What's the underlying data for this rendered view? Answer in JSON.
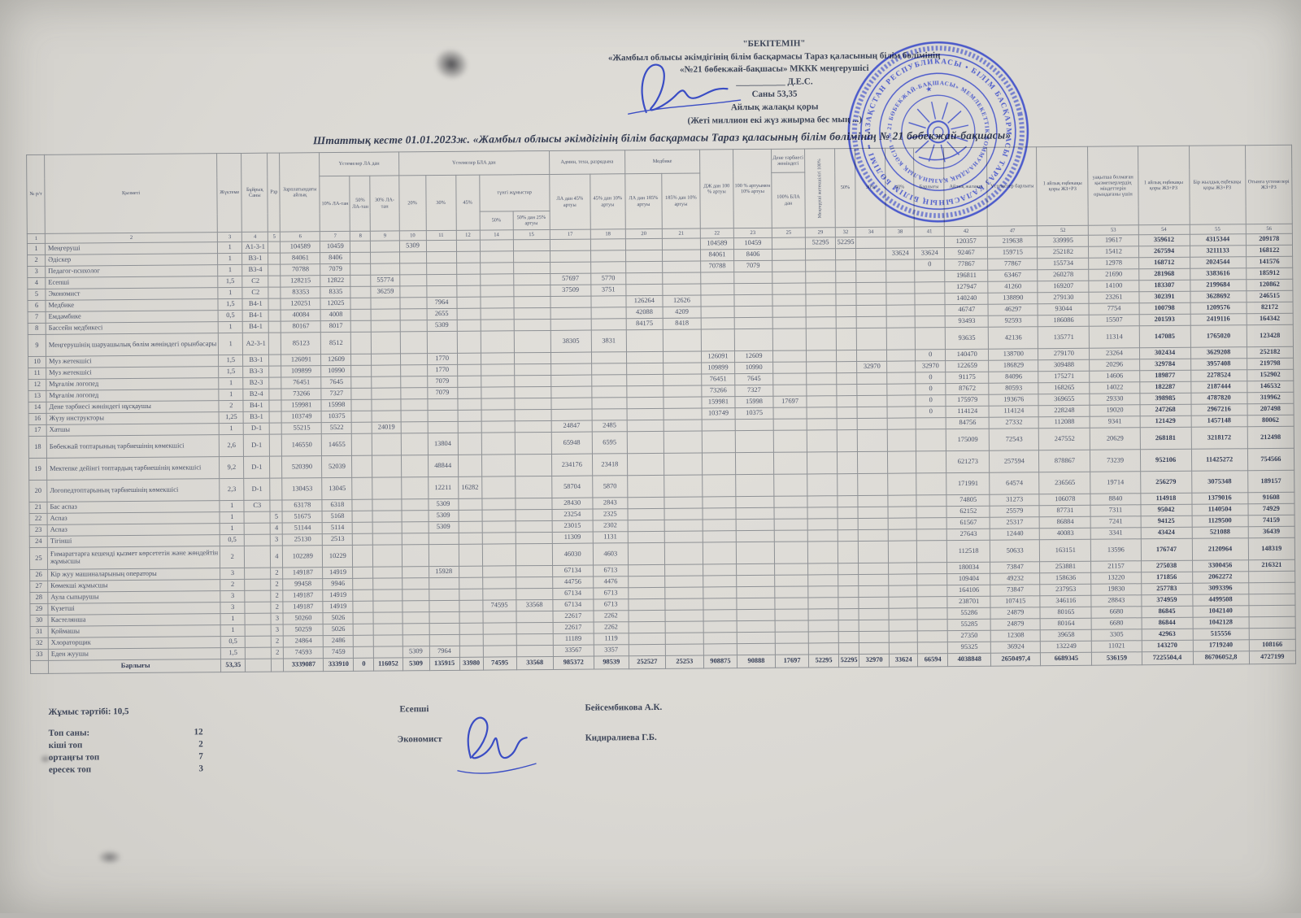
{
  "approval": {
    "l1": "\"БЕКІТЕМІН\"",
    "l2": "«Жамбыл облысы әкімдігінің білім басқармасы Тараз қаласының білім бөлімінің",
    "l3": "«№21 бөбекжай-бақшасы» МККК меңгерушісі",
    "l4": "___________ Д.Е.С.",
    "l5": "Саны 53,35",
    "l6": "Айлық жалақы қоры",
    "l7": "(Жеті миллион екі жүз жиырма бес мың ...)"
  },
  "title": "Штаттық кесте  01.01.2023ж.  «Жамбыл облысы әкімдігінің білім басқармасы Тараз қаласының білім бөлімінің № 21 бөбекжай-бақшасы»",
  "table": {
    "columns": [
      "1",
      "2",
      "3",
      "4",
      "5",
      "6",
      "7",
      "8",
      "9",
      "10",
      "11",
      "12",
      "14",
      "15",
      "17",
      "18",
      "20",
      "21",
      "22",
      "23",
      "25",
      "29",
      "32",
      "34",
      "38",
      "41",
      "42",
      "47",
      "52",
      "53",
      "54",
      "55",
      "56"
    ],
    "h": {
      "c1": "№ р/т",
      "c2": "Қызметі",
      "c3": "Жүктеме",
      "c4": "Бұйрық Саны",
      "c5": "Рзр",
      "c6": "Зарплатындағы айлық",
      "g_la": "Үстемелер ЛА дан",
      "g_bla": "Үстемелер БЛА дан",
      "g_adm": "Админ, техн, разрядына",
      "g_med": "Медбике",
      "g_dene": "Дене тәрбиесі жөніндегі",
      "g_tun": "түнгі жұмыстар",
      "c7": "10% ЛА-тан",
      "c8": "50% ЛА-тан",
      "c9": "30% ЛА-тан",
      "c10": "20%",
      "c11": "30%",
      "c12": "45%",
      "c14": "50%",
      "c15": "50% дан 25% артуы",
      "c17": "ЛА дан 45% артуы",
      "c18": "45% дан 10% артуы",
      "c20": "ЛА дан 185% артуы",
      "c21": "185% дан 10% артуы",
      "c22": "ДЖ дан 100 % артуы",
      "c23": "100 % артуымен 10% артуы",
      "c25": "100% БЛА дан",
      "c29": "Меңгеруші жетекшілігі 100%",
      "c32": "50%",
      "c34": "30%",
      "c38": "40%",
      "c41": "Барлығы",
      "c42": "Айлық жалақы",
      "c47": "Үстемелер барлығы",
      "c52": "1 айлық еңбекақы қоры ЖЗ+РЗ",
      "c53": "уақытша болмаған қызметкерлердің міндеттерін орындағаны үшін",
      "c54": "1 айлық еңбекақы қоры ЖЗ+РЗ",
      "c55": "Бір жылдық еңбекақы қоры ЖЗ+РЗ",
      "c56": "Отынға үстемелері ЖЗ+РЗ"
    },
    "rows": [
      {
        "cells": {
          "1": "1",
          "2": "Меңгеруші",
          "3": "1",
          "4": "A1-3-1",
          "6": "104589",
          "7": "10459",
          "10": "5309",
          "22": "104589",
          "23": "10459",
          "29": "52295",
          "32": "52295",
          "42": "120357",
          "47": "219638",
          "52": "339995",
          "53": "19617",
          "54": "359612",
          "55": "4315344",
          "56": "209178"
        }
      },
      {
        "cells": {
          "1": "2",
          "2": "Әдіскер",
          "3": "1",
          "4": "B3-1",
          "6": "84061",
          "7": "8406",
          "22": "84061",
          "23": "8406",
          "38": "33624",
          "41": "33624",
          "42": "92467",
          "47": "159715",
          "52": "252182",
          "53": "15412",
          "54": "267594",
          "55": "3211133",
          "56": "168122"
        }
      },
      {
        "cells": {
          "1": "3",
          "2": "Педагог-психолог",
          "3": "1",
          "4": "B3-4",
          "6": "70788",
          "7": "7079",
          "22": "70788",
          "23": "7079",
          "41": "0",
          "42": "77867",
          "47": "77867",
          "52": "155734",
          "53": "12978",
          "54": "168712",
          "55": "2024544",
          "56": "141576"
        }
      },
      {
        "cells": {
          "1": "4",
          "2": "Есепші",
          "3": "1,5",
          "4": "C2",
          "6": "128215",
          "7": "12822",
          "9": "55774",
          "17": "57697",
          "18": "5770",
          "42": "196811",
          "47": "63467",
          "52": "260278",
          "53": "21690",
          "54": "281968",
          "55": "3383616",
          "56": "185912"
        }
      },
      {
        "cells": {
          "1": "5",
          "2": "Экономист",
          "3": "1",
          "4": "C2",
          "6": "83353",
          "7": "8335",
          "9": "36259",
          "17": "37509",
          "18": "3751",
          "42": "127947",
          "47": "41260",
          "52": "169207",
          "53": "14100",
          "54": "183307",
          "55": "2199684",
          "56": "120862"
        }
      },
      {
        "cells": {
          "1": "6",
          "2": "Медбике",
          "3": "1,5",
          "4": "B4-1",
          "6": "120251",
          "7": "12025",
          "11": "7964",
          "20": "126264",
          "21": "12626",
          "42": "140240",
          "47": "138890",
          "52": "279130",
          "53": "23261",
          "54": "302391",
          "55": "3628692",
          "56": "246515"
        }
      },
      {
        "cells": {
          "1": "7",
          "2": "Емдәмбике",
          "3": "0,5",
          "4": "B4-1",
          "6": "40084",
          "7": "4008",
          "11": "2655",
          "20": "42088",
          "21": "4209",
          "42": "46747",
          "47": "46297",
          "52": "93044",
          "53": "7754",
          "54": "100798",
          "55": "1209576",
          "56": "82172"
        }
      },
      {
        "cells": {
          "1": "8",
          "2": "Бассейн медбикесі",
          "3": "1",
          "4": "B4-1",
          "6": "80167",
          "7": "8017",
          "11": "5309",
          "20": "84175",
          "21": "8418",
          "42": "93493",
          "47": "92593",
          "52": "186086",
          "53": "15507",
          "54": "201593",
          "55": "2419116",
          "56": "164342"
        }
      },
      {
        "tall": true,
        "cells": {
          "1": "9",
          "2": "Меңгерушінің шаруашылық бөлім жөніндегі орынбасары",
          "3": "1",
          "4": "A2-3-1",
          "6": "85123",
          "7": "8512",
          "17": "38305",
          "18": "3831",
          "42": "93635",
          "47": "42136",
          "52": "135771",
          "53": "11314",
          "54": "147085",
          "55": "1765020",
          "56": "123428"
        }
      },
      {
        "cells": {
          "1": "10",
          "2": "Муз жетекшісі",
          "3": "1,5",
          "4": "B3-1",
          "6": "126091",
          "7": "12609",
          "11": "1770",
          "22": "126091",
          "23": "12609",
          "41": "0",
          "42": "140470",
          "47": "138700",
          "52": "279170",
          "53": "23264",
          "54": "302434",
          "55": "3629208",
          "56": "252182"
        }
      },
      {
        "cells": {
          "1": "11",
          "2": "Муз жетекшісі",
          "3": "1,5",
          "4": "B3-3",
          "6": "109899",
          "7": "10990",
          "11": "1770",
          "22": "109899",
          "23": "10990",
          "34": "32970",
          "41": "32970",
          "42": "122659",
          "47": "186829",
          "52": "309488",
          "53": "20296",
          "54": "329784",
          "55": "3957408",
          "56": "219798"
        }
      },
      {
        "cells": {
          "1": "12",
          "2": "Мұғалім логопед",
          "3": "1",
          "4": "B2-3",
          "6": "76451",
          "7": "7645",
          "11": "7079",
          "22": "76451",
          "23": "7645",
          "41": "0",
          "42": "91175",
          "47": "84096",
          "52": "175271",
          "53": "14606",
          "54": "189877",
          "55": "2278524",
          "56": "152902"
        }
      },
      {
        "cells": {
          "1": "13",
          "2": "Мұғалім логопед",
          "3": "1",
          "4": "B2-4",
          "6": "73266",
          "7": "7327",
          "11": "7079",
          "22": "73266",
          "23": "7327",
          "41": "0",
          "42": "87672",
          "47": "80593",
          "52": "168265",
          "53": "14022",
          "54": "182287",
          "55": "2187444",
          "56": "146532"
        }
      },
      {
        "cells": {
          "1": "14",
          "2": "Дене тәрбиесі жөніндегі нұсқаушы",
          "3": "2",
          "4": "B4-1",
          "6": "159981",
          "7": "15998",
          "22": "159981",
          "23": "15998",
          "25": "17697",
          "41": "0",
          "42": "175979",
          "47": "193676",
          "52": "369655",
          "53": "29330",
          "54": "398985",
          "55": "4787820",
          "56": "319962"
        }
      },
      {
        "cells": {
          "1": "16",
          "2": "Жүзу инструкторы",
          "3": "1,25",
          "4": "B3-1",
          "6": "103749",
          "7": "10375",
          "22": "103749",
          "23": "10375",
          "41": "0",
          "42": "114124",
          "47": "114124",
          "52": "228248",
          "53": "19020",
          "54": "247268",
          "55": "2967216",
          "56": "207498"
        }
      },
      {
        "cells": {
          "1": "17",
          "2": "Хатшы",
          "3": "1",
          "4": "D-1",
          "6": "55215",
          "7": "5522",
          "9": "24019",
          "17": "24847",
          "18": "2485",
          "42": "84756",
          "47": "27332",
          "52": "112088",
          "53": "9341",
          "54": "121429",
          "55": "1457148",
          "56": "80062"
        }
      },
      {
        "tall": true,
        "cells": {
          "1": "18",
          "2": "Бөбекжай топтарының тәрбиешінің көмекшісі",
          "3": "2,6",
          "4": "D-1",
          "6": "146550",
          "7": "14655",
          "11": "13804",
          "17": "65948",
          "18": "6595",
          "42": "175009",
          "47": "72543",
          "52": "247552",
          "53": "20629",
          "54": "268181",
          "55": "3218172",
          "56": "212498"
        }
      },
      {
        "tall": true,
        "cells": {
          "1": "19",
          "2": "Мектепке дейінгі топтардың тәрбиешінің көмекшісі",
          "3": "9,2",
          "4": "D-1",
          "6": "520390",
          "7": "52039",
          "11": "48844",
          "17": "234176",
          "18": "23418",
          "42": "621273",
          "47": "257594",
          "52": "878867",
          "53": "73239",
          "54": "952106",
          "55": "11425272",
          "56": "754566"
        }
      },
      {
        "tall": true,
        "cells": {
          "1": "20",
          "2": "Логопедтоптарының тәрбиешінің көмекшісі",
          "3": "2,3",
          "4": "D-1",
          "6": "130453",
          "7": "13045",
          "11": "12211",
          "12": "16282",
          "17": "58704",
          "18": "5870",
          "42": "171991",
          "47": "64574",
          "52": "236565",
          "53": "19714",
          "54": "256279",
          "55": "3075348",
          "56": "189157"
        }
      },
      {
        "cells": {
          "1": "21",
          "2": "Бас аспаз",
          "3": "1",
          "4": "C3",
          "6": "63178",
          "7": "6318",
          "11": "5309",
          "17": "28430",
          "18": "2843",
          "42": "74805",
          "47": "31273",
          "52": "106078",
          "53": "8840",
          "54": "114918",
          "55": "1379016",
          "56": "91608"
        }
      },
      {
        "cells": {
          "1": "22",
          "2": "Аспаз",
          "3": "1",
          "5": "5",
          "6": "51675",
          "7": "5168",
          "11": "5309",
          "17": "23254",
          "18": "2325",
          "42": "62152",
          "47": "25579",
          "52": "87731",
          "53": "7311",
          "54": "95042",
          "55": "1140504",
          "56": "74929"
        }
      },
      {
        "cells": {
          "1": "23",
          "2": "Аспаз",
          "3": "1",
          "5": "4",
          "6": "51144",
          "7": "5114",
          "11": "5309",
          "17": "23015",
          "18": "2302",
          "42": "61567",
          "47": "25317",
          "52": "86884",
          "53": "7241",
          "54": "94125",
          "55": "1129500",
          "56": "74159"
        }
      },
      {
        "cells": {
          "1": "24",
          "2": "Тігінші",
          "3": "0,5",
          "5": "3",
          "6": "25130",
          "7": "2513",
          "17": "11309",
          "18": "1131",
          "42": "27643",
          "47": "12440",
          "52": "40083",
          "53": "3341",
          "54": "43424",
          "55": "521088",
          "56": "36439"
        }
      },
      {
        "tall": true,
        "cells": {
          "1": "25",
          "2": "Ғимараттарға кешенді қызмет көрсететін және жөндейтін жұмысшы",
          "3": "2",
          "5": "4",
          "6": "102289",
          "7": "10229",
          "17": "46030",
          "18": "4603",
          "42": "112518",
          "47": "50633",
          "52": "163151",
          "53": "13596",
          "54": "176747",
          "55": "2120964",
          "56": "148319"
        }
      },
      {
        "cells": {
          "1": "26",
          "2": "Кір жуу машиналарының операторы",
          "3": "3",
          "5": "2",
          "6": "149187",
          "7": "14919",
          "11": "15928",
          "17": "67134",
          "18": "6713",
          "42": "180034",
          "47": "73847",
          "52": "253881",
          "53": "21157",
          "54": "275038",
          "55": "3300456",
          "56": "216321"
        }
      },
      {
        "cells": {
          "1": "27",
          "2": "Көмекші жұмысшы",
          "3": "2",
          "5": "2",
          "6": "99458",
          "7": "9946",
          "17": "44756",
          "18": "4476",
          "42": "109404",
          "47": "49232",
          "52": "158636",
          "53": "13220",
          "54": "171856",
          "55": "2062272"
        }
      },
      {
        "cells": {
          "1": "28",
          "2": "Аула сыпырушы",
          "3": "3",
          "5": "2",
          "6": "149187",
          "7": "14919",
          "17": "67134",
          "18": "6713",
          "42": "164106",
          "47": "73847",
          "52": "237953",
          "53": "19830",
          "54": "257783",
          "55": "3093396"
        }
      },
      {
        "cells": {
          "1": "29",
          "2": "Күзетші",
          "3": "3",
          "5": "2",
          "6": "149187",
          "7": "14919",
          "14": "74595",
          "15": "33568",
          "17": "67134",
          "18": "6713",
          "42": "238701",
          "47": "107415",
          "52": "346116",
          "53": "28843",
          "54": "374959",
          "55": "4499508"
        }
      },
      {
        "cells": {
          "1": "30",
          "2": "Кастелянша",
          "3": "1",
          "5": "3",
          "6": "50260",
          "7": "5026",
          "17": "22617",
          "18": "2262",
          "42": "55286",
          "47": "24879",
          "52": "80165",
          "53": "6680",
          "54": "86845",
          "55": "1042140"
        }
      },
      {
        "cells": {
          "1": "31",
          "2": "Қоймашы",
          "3": "1",
          "5": "3",
          "6": "50259",
          "7": "5026",
          "17": "22617",
          "18": "2262",
          "42": "55285",
          "47": "24879",
          "52": "80164",
          "53": "6680",
          "54": "86844",
          "55": "1042128"
        }
      },
      {
        "cells": {
          "1": "32",
          "2": "Хлораторщик",
          "3": "0,5",
          "5": "2",
          "6": "24864",
          "7": "2486",
          "17": "11189",
          "18": "1119",
          "42": "27350",
          "47": "12308",
          "52": "39658",
          "53": "3305",
          "54": "42963",
          "55": "515556"
        }
      },
      {
        "cells": {
          "1": "33",
          "2": "Еден жуушы",
          "3": "1,5",
          "5": "2",
          "6": "74593",
          "7": "7459",
          "10": "5309",
          "11": "7964",
          "17": "33567",
          "18": "3357",
          "42": "95325",
          "47": "36924",
          "52": "132249",
          "53": "11021",
          "54": "143270",
          "55": "1719240",
          "56": "108166"
        }
      }
    ],
    "totals": {
      "cells": {
        "2": "Барлығы",
        "3": "53,35",
        "6": "3339087",
        "7": "333910",
        "8": "0",
        "9": "116052",
        "10": "5309",
        "11": "135915",
        "12": "33980",
        "14": "74595",
        "15": "33568",
        "17": "985372",
        "18": "98539",
        "20": "252527",
        "21": "25253",
        "22": "908875",
        "23": "90888",
        "25": "17697",
        "29": "52295",
        "32": "52295",
        "34": "32970",
        "38": "33624",
        "41": "66594",
        "42": "4038848",
        "47": "2650497,4",
        "52": "6689345",
        "53": "536159",
        "54": "7225504,4",
        "55": "86706052,8",
        "56": "4727199"
      }
    }
  },
  "footer": {
    "work_label": "Жұмыс тәртібі:  10,5",
    "group_total_label": "Топ саны:",
    "group_total_value": "12",
    "small_label": "кіші топ",
    "small_value": "2",
    "middle_label": "ортаңғы топ",
    "middle_value": "7",
    "older_label": "ересек топ",
    "older_value": "3",
    "acc_role": "Есепші",
    "acc_name": "Бейсембикова А.К.",
    "eco_role": "Экономист",
    "eco_name": "Кидиралиева Г.Б."
  },
  "stamp": {
    "outer": "• ҚАЗАҚСТАН РЕСПУБЛИКАСЫ • БІЛІМ БАСҚАРМАСЫ ТАРАЗ ҚАЛАСЫНЫҢ БІЛІМ БӨЛІМІ •",
    "inner": "«№ 21 БӨБЕКЖАЙ-БАҚШАСЫ» МЕМЛЕКЕТТІК КОММУНАЛДЫҚ ҚАЗЫНАЛЫҚ КӘСІПОРНЫ"
  },
  "stamp_color": "#2b3ec9"
}
